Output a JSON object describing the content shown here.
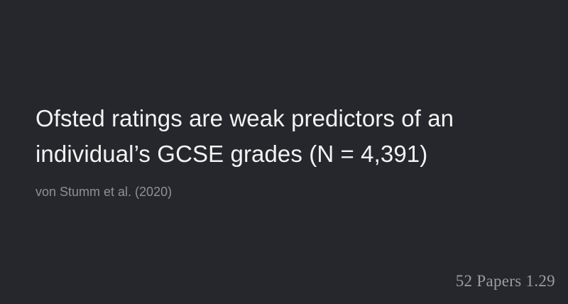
{
  "slide": {
    "title": "Ofsted ratings are weak predictors of an individual’s GCSE grades (N = 4,391)",
    "citation": "von Stumm et al. (2020)",
    "brand": "52 Papers 1.29"
  },
  "colors": {
    "background": "#26272c",
    "title": "#f3f3f3",
    "citation": "#8f9095",
    "brand": "#9c9ca2"
  }
}
